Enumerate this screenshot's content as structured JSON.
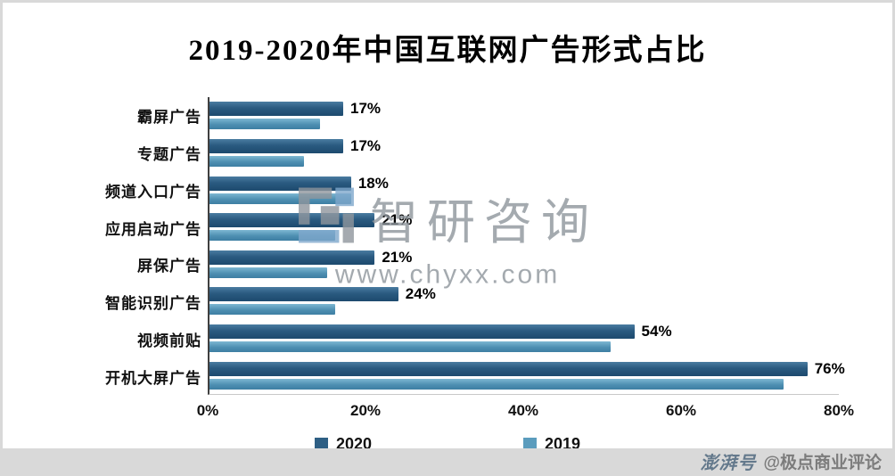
{
  "title": "2019-2020年中国互联网广告形式占比",
  "chart_data": {
    "type": "bar",
    "orientation": "horizontal",
    "title": "2019-2020年中国互联网广告形式占比",
    "categories": [
      "霸屏广告",
      "专题广告",
      "频道入口广告",
      "应用启动广告",
      "屏保广告",
      "智能识别广告",
      "视频前贴",
      "开机大屏广告"
    ],
    "series": [
      {
        "name": "2020",
        "color": "#2e5f84",
        "values": [
          17,
          17,
          18,
          21,
          21,
          24,
          54,
          76
        ],
        "labels": [
          "17%",
          "17%",
          "18%",
          "21%",
          "21%",
          "24%",
          "54%",
          "76%"
        ]
      },
      {
        "name": "2019",
        "color": "#5b9cbd",
        "values": [
          14,
          12,
          18,
          16,
          15,
          16,
          51,
          73
        ]
      }
    ],
    "x_ticks": [
      "0%",
      "20%",
      "40%",
      "60%",
      "80%"
    ],
    "xlim": [
      0,
      80
    ],
    "legend_position": "bottom",
    "grid": false
  },
  "watermark": {
    "brand": "智研咨询",
    "url": "www.chyxx.com"
  },
  "footer": {
    "platform": "澎湃号",
    "account": "@极点商业评论"
  }
}
